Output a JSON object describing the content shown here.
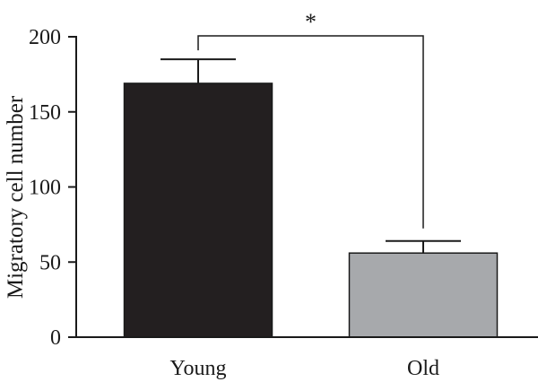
{
  "chart_data": {
    "type": "bar",
    "categories": [
      "Young",
      "Old"
    ],
    "values": [
      169,
      56
    ],
    "errors": [
      16,
      8
    ],
    "bar_colors": [
      "#231f20",
      "#a7a9ac"
    ],
    "xlabel": "",
    "ylabel": "Migratory cell number",
    "ylim": [
      0,
      200
    ],
    "yticks": [
      0,
      50,
      100,
      150,
      200
    ],
    "ytick_labels": [
      "0",
      "50",
      "100",
      "150",
      "200"
    ],
    "significance": {
      "between": [
        "Young",
        "Old"
      ],
      "label": "*"
    },
    "grid": false
  }
}
